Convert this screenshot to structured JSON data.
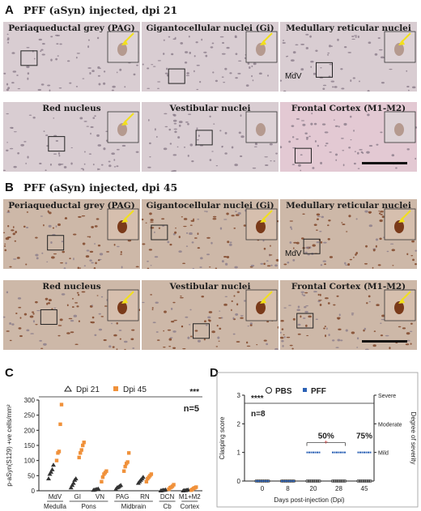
{
  "panels": {
    "A": {
      "letter": "A",
      "title": "PFF (aSyn) injected, dpi 21",
      "tiles": [
        {
          "label": "Periaqueductal grey (PAG)"
        },
        {
          "label": "Gigantocellular nuclei (Gi)"
        },
        {
          "label": "Medullary reticular nuclei",
          "extra": "MdV"
        },
        {
          "label": "Red nucleus"
        },
        {
          "label": "Vestibular nuclei"
        },
        {
          "label": "Frontal Cortex (M1-M2)"
        }
      ]
    },
    "B": {
      "letter": "B",
      "title": "PFF (aSyn) injected, dpi 45",
      "tiles": [
        {
          "label": "Periaqueductal grey (PAG)"
        },
        {
          "label": "Gigantocellular nuclei (Gi)"
        },
        {
          "label": "Medullary reticular nuclei",
          "extra": "MdV"
        },
        {
          "label": "Red nucleus"
        },
        {
          "label": "Vestibular nuclei"
        },
        {
          "label": "Frontal Cortex (M1-M2)"
        }
      ]
    },
    "C": {
      "letter": "C"
    },
    "D": {
      "letter": "D"
    }
  },
  "colors": {
    "tissue_light": "#d9cdd2",
    "tissue_stained": "#cdb8a8",
    "stain": "#7a3e20",
    "arrow": "#f2e01c",
    "orange": "#f0913a",
    "blue": "#2c62b5"
  },
  "chart_data": [
    {
      "type": "scatter",
      "panel": "C",
      "ylabel": "p-aSyn(S129) +ve cells/mm²",
      "ylim": [
        0,
        300
      ],
      "yticks": [
        0,
        50,
        100,
        150,
        200,
        250,
        300
      ],
      "categories": [
        "MdV",
        "GI",
        "VN",
        "PAG",
        "RN",
        "DCN",
        "M1+M2"
      ],
      "groups": [
        {
          "label": "Medulla",
          "members": [
            "MdV"
          ]
        },
        {
          "label": "Pons",
          "members": [
            "GI",
            "VN"
          ]
        },
        {
          "label": "Midbrain",
          "members": [
            "PAG",
            "RN"
          ]
        },
        {
          "label": "Cb",
          "members": [
            "DCN"
          ]
        },
        {
          "label": "Cortex",
          "members": [
            "M1+M2"
          ]
        }
      ],
      "series": [
        {
          "name": "Dpi 21",
          "marker": "triangle",
          "values": [
            [
              40,
              55,
              62,
              70,
              85
            ],
            [
              10,
              18,
              25,
              35,
              40
            ],
            [
              2,
              3,
              4,
              5,
              6
            ],
            [
              5,
              10,
              12,
              15,
              18
            ],
            [
              25,
              30,
              35,
              40,
              45
            ],
            [
              0,
              1,
              2,
              2,
              3
            ],
            [
              0,
              1,
              1,
              2,
              3
            ]
          ]
        },
        {
          "name": "Dpi 45",
          "marker": "square",
          "values": [
            [
              100,
              125,
              130,
              220,
              285
            ],
            [
              110,
              125,
              135,
              150,
              160
            ],
            [
              30,
              45,
              55,
              60,
              65
            ],
            [
              65,
              80,
              90,
              95,
              125
            ],
            [
              30,
              40,
              45,
              50,
              55
            ],
            [
              5,
              10,
              12,
              15,
              20
            ],
            [
              2,
              5,
              8,
              10,
              12
            ]
          ]
        }
      ],
      "significance": "***",
      "n_label": "n=5"
    },
    {
      "type": "scatter",
      "panel": "D",
      "xlabel": "Days post-injection (Dpi)",
      "ylabel": "Clasping score",
      "ylabel_right": "Degree of severity",
      "ylim": [
        0,
        3
      ],
      "yticks": [
        0,
        1,
        2,
        3
      ],
      "x": [
        0,
        8,
        20,
        28,
        45
      ],
      "right_ticks": [
        {
          "y": 3,
          "label": "Severe"
        },
        {
          "y": 2,
          "label": "Moderate"
        },
        {
          "y": 1,
          "label": "Mild"
        }
      ],
      "series": [
        {
          "name": "PBS",
          "marker": "circle",
          "values": [
            0,
            0,
            0,
            0,
            0
          ]
        },
        {
          "name": "PFF",
          "marker": "square",
          "values": [
            0,
            0,
            1,
            1,
            1
          ]
        }
      ],
      "percent_labels": [
        {
          "x": 20,
          "label": "50%"
        },
        {
          "x": 45,
          "label": "75%"
        }
      ],
      "significance": "****",
      "n_label": "n=8",
      "mark": "+"
    }
  ]
}
